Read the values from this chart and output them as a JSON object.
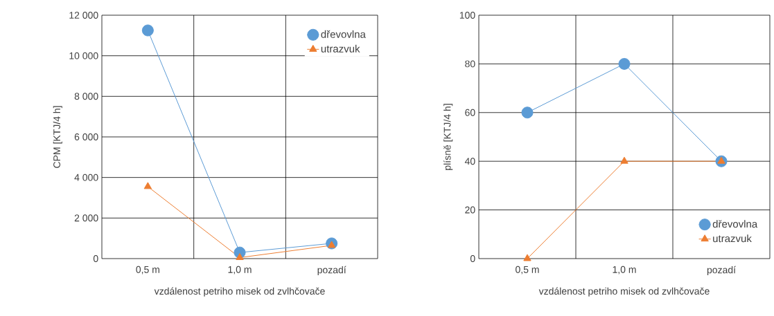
{
  "chart_data": [
    {
      "type": "line",
      "xlabel": "vzdálenost petriho misek od zvlhčovače",
      "ylabel": "CPM [KTJ/4 h]",
      "categories": [
        "0,5 m",
        "1,0 m",
        "pozadí"
      ],
      "series": [
        {
          "name": "dřevovlna",
          "color": "#5b9bd5",
          "marker": "circle",
          "values": [
            11250,
            300,
            750
          ]
        },
        {
          "name": "utrazvuk",
          "color": "#ed7d31",
          "marker": "triangle",
          "values": [
            3550,
            50,
            650
          ]
        }
      ],
      "ylim": [
        0,
        12000
      ],
      "yticks": [
        0,
        {
          "value": 2000,
          "label": "2 000"
        },
        {
          "value": 4000,
          "label": "4 000"
        },
        {
          "value": 6000,
          "label": "6 000"
        },
        {
          "value": 8000,
          "label": "8 000"
        },
        {
          "value": 10000,
          "label": "10 000"
        },
        {
          "value": 12000,
          "label": "12 000"
        }
      ],
      "grid": true,
      "legend": "top right"
    },
    {
      "type": "line",
      "xlabel": "vzdálenost petriho misek od zvlhčovače",
      "ylabel": "plísně [KTJ/4 h]",
      "categories": [
        "0,5 m",
        "1,0 m",
        "pozadí"
      ],
      "series": [
        {
          "name": "dřevovlna",
          "color": "#5b9bd5",
          "marker": "circle",
          "values": [
            60,
            80,
            40
          ]
        },
        {
          "name": "utrazvuk",
          "color": "#ed7d31",
          "marker": "triangle",
          "values": [
            0,
            40,
            40
          ]
        }
      ],
      "ylim": [
        0,
        100
      ],
      "yticks": [
        0,
        20,
        40,
        60,
        80,
        100
      ],
      "grid": true,
      "legend": "bottom right"
    }
  ]
}
